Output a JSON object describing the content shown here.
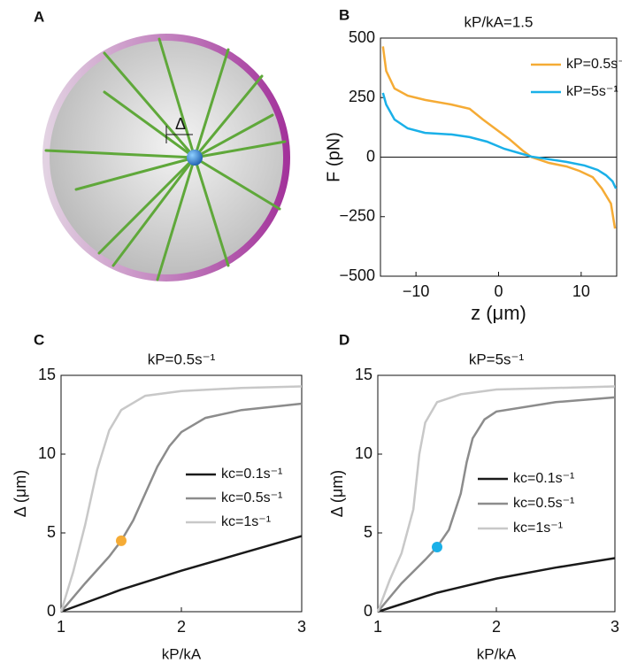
{
  "diagram": {
    "panel_label": "A",
    "delta": "Δ"
  },
  "chart_data": [
    {
      "type": "line",
      "panel_label": "B",
      "title": "kP/kA=1.5",
      "x_label": "z (μm)",
      "y_label": "F (pN)",
      "xlim": [
        -14.3,
        14.3
      ],
      "ylim": [
        -500,
        500
      ],
      "xticks": [
        {
          "value": -10,
          "label": "−10"
        },
        0,
        10
      ],
      "yticks": [
        {
          "value": -500,
          "label": "−500"
        },
        {
          "value": -250,
          "label": "−250"
        },
        0,
        250,
        500
      ],
      "zero_line": true,
      "series": [
        {
          "name": "kP=0.5s⁻¹",
          "color": "#f5ab35",
          "x": [
            -14.0,
            -13.6,
            -12.6,
            -11.0,
            -8.9,
            -5.7,
            -3.5,
            -1.9,
            1.3,
            2.9,
            4.0,
            6.1,
            8.2,
            9.8,
            11.4,
            12.5,
            13.6,
            14.1
          ],
          "values": [
            465,
            362,
            288,
            258,
            240,
            221,
            203,
            158,
            76,
            28,
            0,
            -24,
            -39,
            -58,
            -84,
            -132,
            -195,
            -300
          ]
        },
        {
          "name": "kP=5s⁻¹",
          "color": "#1ab0e8",
          "x": [
            -14.0,
            -13.6,
            -12.6,
            -11.0,
            -8.9,
            -5.7,
            -3.5,
            -1.4,
            0.7,
            2.9,
            4.0,
            6.1,
            8.2,
            10.4,
            12.0,
            13.0,
            13.8,
            14.2
          ],
          "values": [
            270,
            221,
            158,
            121,
            102,
            95,
            84,
            65,
            35,
            13,
            2,
            -9,
            -20,
            -35,
            -54,
            -76,
            -102,
            -132
          ]
        }
      ]
    },
    {
      "type": "line",
      "panel_label": "C",
      "title": "kP=0.5s⁻¹",
      "x_label": "kP/kA",
      "y_label": "Δ (μm)",
      "xlim": [
        1,
        3
      ],
      "ylim": [
        0,
        15
      ],
      "xticks": [
        1,
        2,
        3
      ],
      "yticks": [
        0,
        5,
        10,
        15
      ],
      "series": [
        {
          "name": "kc=0.1s⁻¹",
          "color": "#1a1a1a",
          "x": [
            1,
            1.5,
            2,
            2.5,
            3
          ],
          "values": [
            0,
            1.4,
            2.6,
            3.7,
            4.8
          ]
        },
        {
          "name": "kc=0.5s⁻¹",
          "color": "#8c8c8c",
          "x": [
            1,
            1.2,
            1.4,
            1.5,
            1.6,
            1.7,
            1.8,
            1.9,
            2,
            2.2,
            2.5,
            3
          ],
          "values": [
            0,
            1.8,
            3.5,
            4.5,
            5.8,
            7.5,
            9.2,
            10.5,
            11.4,
            12.3,
            12.8,
            13.2
          ]
        },
        {
          "name": "kc=1s⁻¹",
          "color": "#c8c8c8",
          "x": [
            1,
            1.1,
            1.2,
            1.3,
            1.4,
            1.5,
            1.7,
            2,
            2.5,
            3
          ],
          "values": [
            0,
            2.5,
            5.5,
            9,
            11.5,
            12.8,
            13.7,
            14,
            14.2,
            14.3
          ]
        }
      ],
      "markers": [
        {
          "x": 1.5,
          "y": 4.5,
          "color": "#f5ab35"
        }
      ]
    },
    {
      "type": "line",
      "panel_label": "D",
      "title": "kP=5s⁻¹",
      "x_label": "kP/kA",
      "y_label": "Δ (μm)",
      "xlim": [
        1,
        3
      ],
      "ylim": [
        0,
        15
      ],
      "xticks": [
        1,
        2,
        3
      ],
      "yticks": [
        0,
        5,
        10,
        15
      ],
      "series": [
        {
          "name": "kc=0.1s⁻¹",
          "color": "#1a1a1a",
          "x": [
            1,
            1.5,
            2,
            2.5,
            3
          ],
          "values": [
            0,
            1.2,
            2.1,
            2.8,
            3.4
          ]
        },
        {
          "name": "kc=0.5s⁻¹",
          "color": "#8c8c8c",
          "x": [
            1,
            1.2,
            1.4,
            1.5,
            1.6,
            1.7,
            1.75,
            1.8,
            1.9,
            2,
            2.5,
            3
          ],
          "values": [
            0,
            1.8,
            3.3,
            4.1,
            5.2,
            7.5,
            9.5,
            11,
            12.2,
            12.7,
            13.3,
            13.6
          ]
        },
        {
          "name": "kc=1s⁻¹",
          "color": "#c8c8c8",
          "x": [
            1,
            1.1,
            1.2,
            1.3,
            1.35,
            1.4,
            1.5,
            1.7,
            2,
            3
          ],
          "values": [
            0,
            2,
            3.7,
            6.5,
            10,
            12,
            13.3,
            13.8,
            14.1,
            14.3
          ]
        }
      ],
      "markers": [
        {
          "x": 1.5,
          "y": 4.1,
          "color": "#1ab0e8"
        }
      ]
    }
  ]
}
